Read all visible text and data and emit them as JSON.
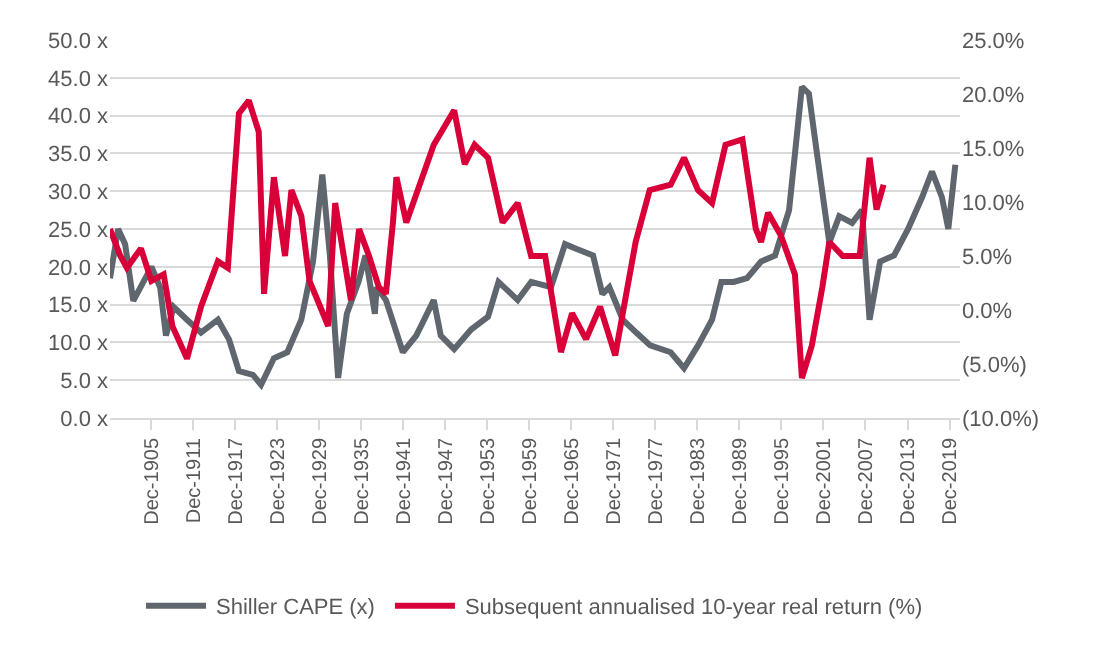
{
  "chart_data": {
    "type": "line",
    "legend": "bottom",
    "grid": "y",
    "line_style": "solid",
    "marker": "none",
    "xlim": [
      "1900-01",
      "2021-06"
    ],
    "xticks": [
      {
        "value": "1905-12",
        "label": "Dec-1905"
      },
      {
        "value": "1911-12",
        "label": "Dec-1911"
      },
      {
        "value": "1917-12",
        "label": "Dec-1917"
      },
      {
        "value": "1923-12",
        "label": "Dec-1923"
      },
      {
        "value": "1929-12",
        "label": "Dec-1929"
      },
      {
        "value": "1935-12",
        "label": "Dec-1935"
      },
      {
        "value": "1941-12",
        "label": "Dec-1941"
      },
      {
        "value": "1947-12",
        "label": "Dec-1947"
      },
      {
        "value": "1953-12",
        "label": "Dec-1953"
      },
      {
        "value": "1959-12",
        "label": "Dec-1959"
      },
      {
        "value": "1965-12",
        "label": "Dec-1965"
      },
      {
        "value": "1971-12",
        "label": "Dec-1971"
      },
      {
        "value": "1977-12",
        "label": "Dec-1977"
      },
      {
        "value": "1983-12",
        "label": "Dec-1983"
      },
      {
        "value": "1989-12",
        "label": "Dec-1989"
      },
      {
        "value": "1995-12",
        "label": "Dec-1995"
      },
      {
        "value": "2001-12",
        "label": "Dec-2001"
      },
      {
        "value": "2007-12",
        "label": "Dec-2007"
      },
      {
        "value": "2013-12",
        "label": "Dec-2013"
      },
      {
        "value": "2019-12",
        "label": "Dec-2019"
      }
    ],
    "ylim": [
      0,
      50
    ],
    "yticks": [
      {
        "value": 0,
        "label": "0.0 x"
      },
      {
        "value": 5,
        "label": "5.0 x"
      },
      {
        "value": 10,
        "label": "10.0 x"
      },
      {
        "value": 15,
        "label": "15.0 x"
      },
      {
        "value": 20,
        "label": "20.0 x"
      },
      {
        "value": 25,
        "label": "25.0 x"
      },
      {
        "value": 30,
        "label": "30.0 x"
      },
      {
        "value": 35,
        "label": "35.0 x"
      },
      {
        "value": 40,
        "label": "40.0 x"
      },
      {
        "value": 45,
        "label": "45.0 x"
      },
      {
        "value": 50,
        "label": "50.0 x"
      }
    ],
    "y2lim": [
      -10,
      25
    ],
    "y2ticks": [
      {
        "value": -10,
        "label": "(10.0%)"
      },
      {
        "value": -5,
        "label": "(5.0%)"
      },
      {
        "value": 0,
        "label": "0.0%"
      },
      {
        "value": 5,
        "label": "5.0%"
      },
      {
        "value": 10,
        "label": "10.0%"
      },
      {
        "value": 15,
        "label": "15.0%"
      },
      {
        "value": 20,
        "label": "20.0%"
      },
      {
        "value": 25,
        "label": "25.0%"
      }
    ],
    "series": [
      {
        "name": "Shiller CAPE (x)",
        "color": "#5f666d",
        "x": [
          "1900-01",
          "1901-03",
          "1902-03",
          "1903-05",
          "1905-12",
          "1907-03",
          "1908-01",
          "1909-02",
          "1911-01",
          "1913-01",
          "1915-06",
          "1917-01",
          "1918-06",
          "1920-06",
          "1921-08",
          "1923-06",
          "1925-05",
          "1927-05",
          "1929-01",
          "1930-05",
          "1931-06",
          "1932-08",
          "1933-11",
          "1935-07",
          "1936-07",
          "1937-11",
          "1938-02",
          "1939-06",
          "1941-11",
          "1943-10",
          "1946-04",
          "1947-04",
          "1949-03",
          "1951-08",
          "1954-01",
          "1955-07",
          "1958-04",
          "1960-03",
          "1963-01",
          "1965-01",
          "1966-08",
          "1969-01",
          "1970-05",
          "1971-05",
          "1973-04",
          "1975-03",
          "1977-03",
          "1980-02",
          "1982-01",
          "1984-01",
          "1986-01",
          "1987-05",
          "1989-02",
          "1991-01",
          "1993-01",
          "1995-01",
          "1997-01",
          "1998-11",
          "1999-11",
          "2000-11",
          "2002-10",
          "2004-03",
          "2006-01",
          "2007-06",
          "2008-07",
          "2010-01",
          "2012-01",
          "2014-01",
          "2016-01",
          "2017-06",
          "2018-11",
          "2019-10",
          "2020-10"
        ],
        "values": [
          18.5,
          25,
          23,
          15.5,
          20,
          17.3,
          10.9,
          14.7,
          13,
          11.3,
          13,
          10.4,
          6.2,
          5.7,
          4.4,
          7.9,
          8.7,
          13,
          20.7,
          32.2,
          21.5,
          5.3,
          13.8,
          18,
          21.5,
          13.8,
          17.3,
          15.6,
          8.7,
          10.9,
          15.6,
          10.9,
          9.1,
          11.7,
          13.4,
          18,
          15.6,
          18,
          17.3,
          23,
          22.4,
          21.5,
          16.4,
          17.3,
          13,
          11.3,
          9.6,
          8.7,
          6.6,
          9.6,
          13,
          18,
          18,
          18.5,
          20.7,
          21.5,
          27.5,
          43.8,
          42.9,
          36,
          23.2,
          26.7,
          25.8,
          27.5,
          13,
          20.7,
          21.5,
          25,
          29.2,
          32.6,
          29.2,
          25,
          33.5
        ]
      },
      {
        "name": "Subsequent annualised 10-year real return (%)",
        "color": "#d9003a",
        "axis": "y2",
        "x": [
          "1900-01",
          "1901-06",
          "1902-06",
          "1904-06",
          "1905-12",
          "1907-09",
          "1908-12",
          "1911-01",
          "1913-01",
          "1915-06",
          "1916-11",
          "1918-06",
          "1919-11",
          "1921-04",
          "1922-01",
          "1923-06",
          "1925-01",
          "1925-12",
          "1927-05",
          "1928-07",
          "1930-06",
          "1931-03",
          "1932-03",
          "1934-06",
          "1935-08",
          "1937-01",
          "1938-06",
          "1939-06",
          "1940-06",
          "1940-12",
          "1942-05",
          "1946-04",
          "1949-03",
          "1950-09",
          "1952-02",
          "1954-01",
          "1956-02",
          "1958-04",
          "1960-03",
          "1962-03",
          "1964-06",
          "1966-01",
          "1968-01",
          "1970-01",
          "1972-03",
          "1973-08",
          "1975-02",
          "1977-02",
          "1980-02",
          "1982-01",
          "1984-01",
          "1986-01",
          "1987-12",
          "1990-05",
          "1992-04",
          "1993-01",
          "1994-01",
          "1995-11",
          "1997-11",
          "1998-11",
          "2000-04",
          "2001-10",
          "2002-10",
          "2004-09",
          "2007-02",
          "2008-07",
          "2009-07",
          "2010-07"
        ],
        "values": [
          7.5,
          5.1,
          3.9,
          5.7,
          2.7,
          3.3,
          -1.5,
          -4.5,
          0.3,
          4.5,
          3.9,
          18.2,
          19.4,
          16.5,
          1.5,
          12.3,
          5,
          11.1,
          8.7,
          2.7,
          -0.3,
          -1.5,
          9.9,
          0.9,
          7.5,
          5,
          2.1,
          1.5,
          8.1,
          12.3,
          8.1,
          15.3,
          18.5,
          13.5,
          15.3,
          14.1,
          8.1,
          9.9,
          5,
          5,
          -3.9,
          -0.3,
          -2.7,
          0.3,
          -4.2,
          0.9,
          6.3,
          11.1,
          11.6,
          14.1,
          11.1,
          9.9,
          15.3,
          15.8,
          7.5,
          6.3,
          9,
          6.9,
          3.3,
          -6.3,
          -3.3,
          2.1,
          6.3,
          5,
          5,
          14.1,
          9.3,
          11.6
        ]
      }
    ]
  }
}
